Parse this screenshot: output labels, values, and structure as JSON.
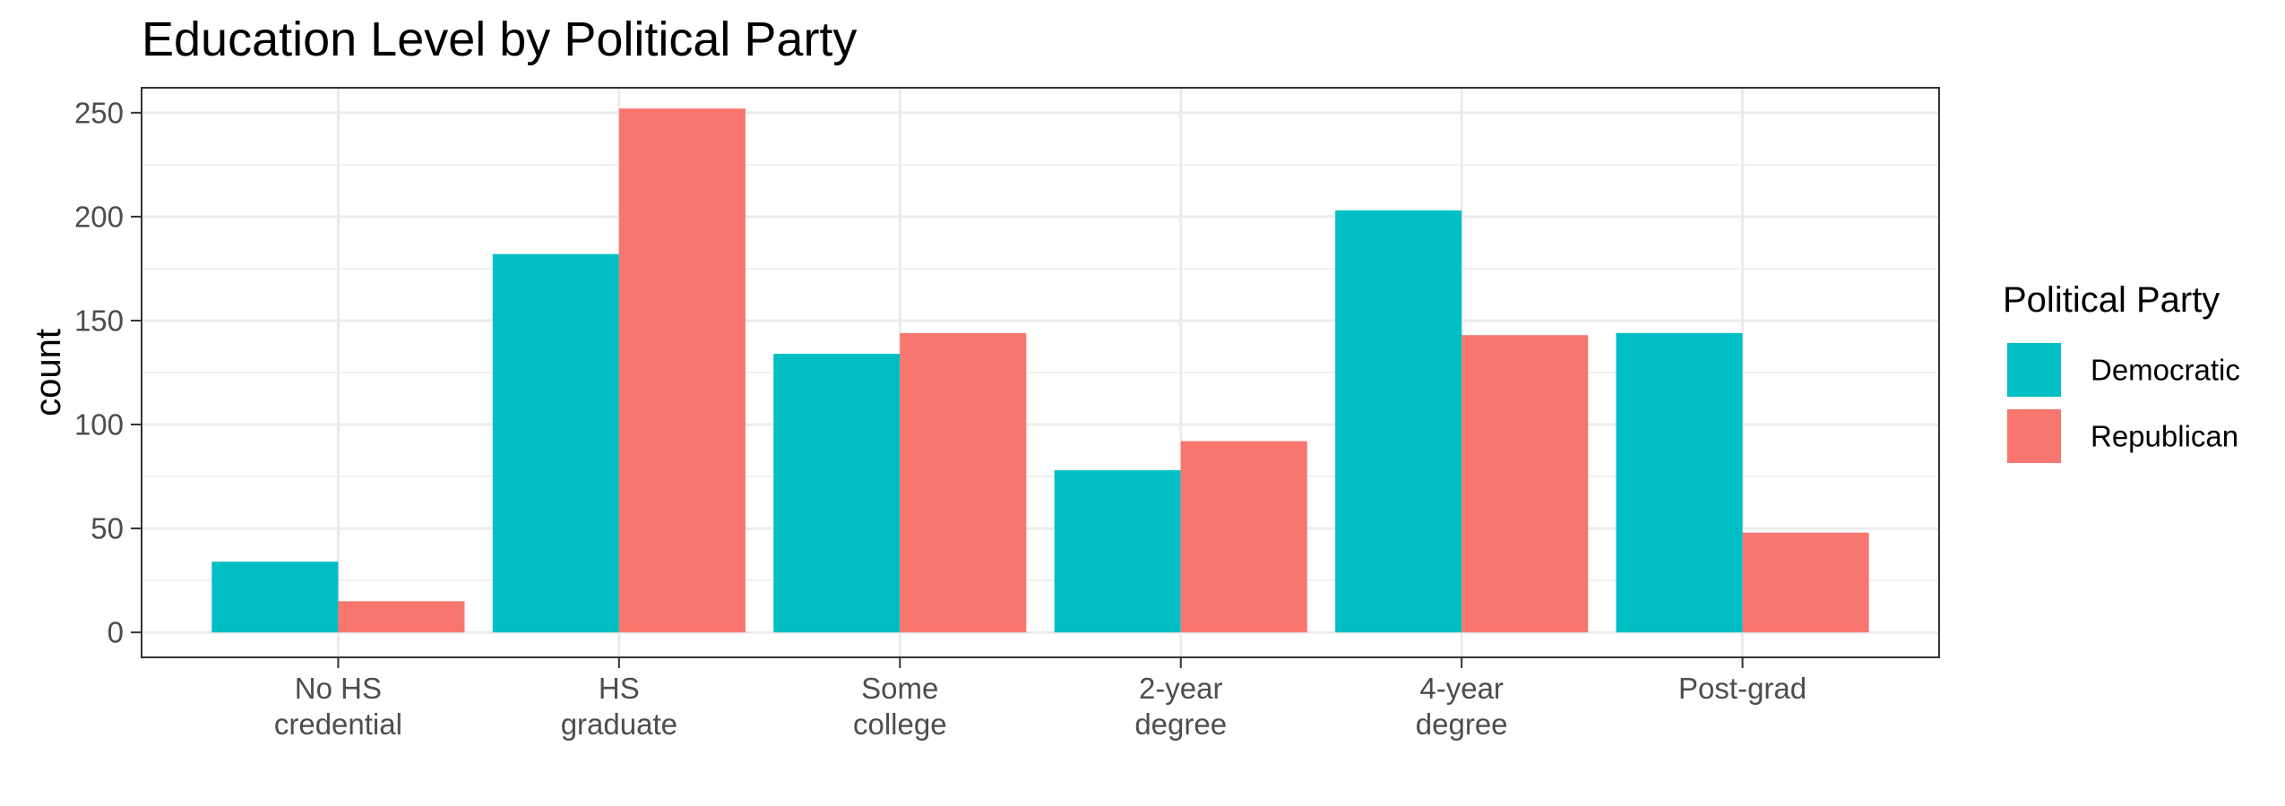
{
  "chart_data": {
    "type": "bar",
    "title": "Education Level by Political Party",
    "xlabel": "",
    "ylabel": "count",
    "ylim": [
      -12,
      262
    ],
    "yticks": [
      0,
      50,
      100,
      150,
      200,
      250
    ],
    "grid": true,
    "legend": {
      "title": "Political Party",
      "position": "right"
    },
    "categories": [
      [
        "No HS",
        "credential"
      ],
      [
        "HS",
        "graduate"
      ],
      [
        "Some",
        "college"
      ],
      [
        "2-year",
        "degree"
      ],
      [
        "4-year",
        "degree"
      ],
      [
        "Post-grad"
      ]
    ],
    "series": [
      {
        "name": "Democratic",
        "color": "#00BFC4",
        "values": [
          34,
          182,
          134,
          78,
          203,
          144
        ]
      },
      {
        "name": "Republican",
        "color": "#F8766D",
        "values": [
          15,
          252,
          144,
          92,
          143,
          48
        ]
      }
    ]
  }
}
